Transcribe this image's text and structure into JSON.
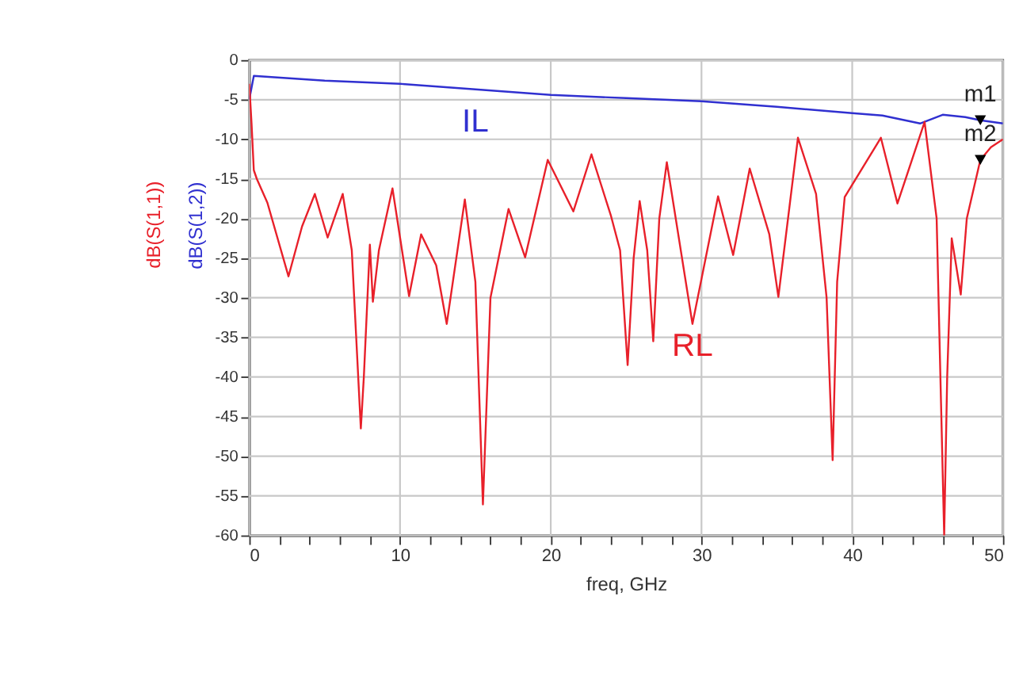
{
  "chart_data": {
    "type": "line",
    "xlabel": "freq, GHz",
    "ylabel": "dB(S(1,2))",
    "xlim": [
      0,
      50
    ],
    "ylim": [
      -60,
      0
    ],
    "xticks": [
      0,
      {
        "value": 2,
        "label": null
      },
      {
        "value": 4,
        "label": null
      },
      {
        "value": 6,
        "label": null
      },
      {
        "value": 8,
        "label": null
      },
      10,
      {
        "value": 12,
        "label": null
      },
      {
        "value": 14,
        "label": null
      },
      {
        "value": 16,
        "label": null
      },
      {
        "value": 18,
        "label": null
      },
      20,
      {
        "value": 22,
        "label": null
      },
      {
        "value": 24,
        "label": null
      },
      {
        "value": 26,
        "label": null
      },
      {
        "value": 28,
        "label": null
      },
      30,
      {
        "value": 32,
        "label": null
      },
      {
        "value": 34,
        "label": null
      },
      {
        "value": 36,
        "label": null
      },
      {
        "value": 38,
        "label": null
      },
      40,
      {
        "value": 42,
        "label": null
      },
      {
        "value": 44,
        "label": null
      },
      {
        "value": 46,
        "label": null
      },
      {
        "value": 48,
        "label": null
      },
      50
    ],
    "yticks": [
      0,
      -5,
      -10,
      -15,
      -20,
      -25,
      -30,
      -35,
      -40,
      -45,
      -50,
      -55,
      -60
    ],
    "grid": true,
    "marker": "none",
    "line_style": "solid",
    "series": [
      {
        "name": "IL",
        "color": "#3030d0",
        "x": [
          0,
          0.3,
          5,
          10,
          15,
          20,
          25,
          30,
          35,
          40,
          42,
          44.5,
          46,
          47.5,
          48.5,
          50
        ],
        "values": [
          -5,
          -2.0,
          -2.6,
          -3.0,
          -3.7,
          -4.4,
          -4.8,
          -5.2,
          -5.9,
          -6.7,
          -7.0,
          -8.0,
          -6.9,
          -7.2,
          -7.6,
          -8.0
        ]
      },
      {
        "name": "RL",
        "color": "#e8202a",
        "x": [
          0,
          0.15,
          0.3,
          0.5,
          1.2,
          2.6,
          3.5,
          4.35,
          5.2,
          6.2,
          6.8,
          7.4,
          7.6,
          8.0,
          8.2,
          8.6,
          9.5,
          10.6,
          11.4,
          12.4,
          13.1,
          14.3,
          15.0,
          15.5,
          16.0,
          17.2,
          18.3,
          19.8,
          21.5,
          22.7,
          24.0,
          24.6,
          25.1,
          25.5,
          25.9,
          26.4,
          26.8,
          27.2,
          27.7,
          29.4,
          31.1,
          32.1,
          33.2,
          34.5,
          35.1,
          36.4,
          37.6,
          38.3,
          38.7,
          39.0,
          39.5,
          41.9,
          43.0,
          44.8,
          45.6,
          46.1,
          46.3,
          46.6,
          46.9,
          47.2,
          47.6,
          48.5,
          49.2,
          50
        ],
        "values": [
          -3,
          -8,
          -13.9,
          -15,
          -18,
          -27.3,
          -21,
          -16.9,
          -22.4,
          -16.9,
          -24,
          -46.5,
          -40,
          -23.3,
          -30.5,
          -24,
          -16.2,
          -29.8,
          -22,
          -25.9,
          -33.3,
          -17.6,
          -28,
          -56.1,
          -30,
          -18.8,
          -24.9,
          -12.6,
          -19.1,
          -11.9,
          -19.7,
          -24,
          -38.5,
          -25,
          -17.8,
          -24,
          -35.5,
          -20,
          -12.9,
          -33.3,
          -17.2,
          -24.6,
          -13.7,
          -22,
          -29.9,
          -9.8,
          -16.9,
          -30,
          -50.5,
          -28,
          -17.3,
          -9.8,
          -18.1,
          -7.8,
          -20,
          -60,
          -40,
          -22.5,
          -26,
          -29.6,
          -20,
          -12.6,
          -11,
          -10
        ]
      }
    ],
    "annotations": [
      "dB(S(1,1))",
      {
        "text": "m1",
        "x": 48.5,
        "y": -7.6
      },
      {
        "text": "m2",
        "x": 48.5,
        "y": -12.6
      }
    ]
  }
}
